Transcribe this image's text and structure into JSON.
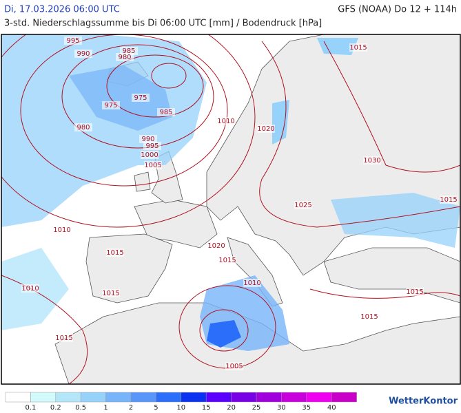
{
  "header": {
    "valid_time": "Di, 17.03.2026 06:00 UTC",
    "model": "GFS (NOAA) Do 12 + 114h",
    "subtitle": "3-std. Niederschlagssumme bis Di 06:00 UTC [mm] / Bodendruck [hPa]"
  },
  "isobar_labels": [
    995,
    990,
    985,
    980,
    975,
    975,
    980,
    985,
    990,
    995,
    1000,
    1005,
    1010,
    1020,
    1015,
    1030,
    1025,
    1015,
    1010,
    1015,
    1020,
    1015,
    1010,
    1010,
    1015,
    1015,
    1015,
    1015,
    1005
  ],
  "legend": {
    "colors": [
      "#ffffff",
      "#d2fafa",
      "#b4e6fa",
      "#96d2fa",
      "#78b4fa",
      "#5a96fa",
      "#2a6efa",
      "#0a32f0",
      "#5a00ff",
      "#7800e6",
      "#a000dc",
      "#c800dc",
      "#f000f0",
      "#c800c8"
    ],
    "labels": [
      0.1,
      0.2,
      0.5,
      1,
      2,
      5,
      10,
      15,
      20,
      25,
      30,
      35,
      40
    ]
  },
  "logo": "WetterKontor"
}
